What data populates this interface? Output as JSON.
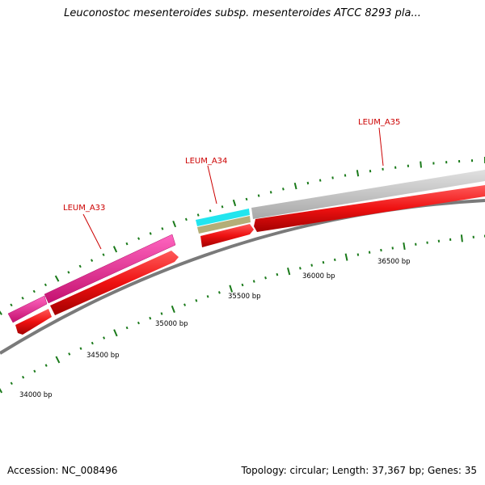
{
  "title": "Leuconostoc mesenteroides subsp. mesenteroides ATCC 8293 pla...",
  "footer": {
    "accession": "Accession: NC_008496",
    "summary": "Topology: circular; Length: 37,367 bp; Genes: 35"
  },
  "colors": {
    "cds": "#ee1111",
    "gene_magenta": "#e8178f",
    "gene_cyan": "#22e5ee",
    "gene_olive": "#b4ae78",
    "gene_gray": "#c4c4c4",
    "backbone": "#808080",
    "tick": "#1a7a1a",
    "label": "#cc0000"
  },
  "ticks": [
    {
      "bp": 34000,
      "label": "34000 bp"
    },
    {
      "bp": 34500,
      "label": "34500 bp"
    },
    {
      "bp": 35000,
      "label": "35000 bp"
    },
    {
      "bp": 35500,
      "label": "35500 bp"
    },
    {
      "bp": 36000,
      "label": "36000 bp"
    },
    {
      "bp": 36500,
      "label": "36500 bp"
    }
  ],
  "genes": [
    {
      "name": "LEUM_A33",
      "color": "magenta"
    },
    {
      "name": "LEUM_A34",
      "color": "cyan"
    },
    {
      "name": "LEUM_A35",
      "color": "gray"
    }
  ]
}
